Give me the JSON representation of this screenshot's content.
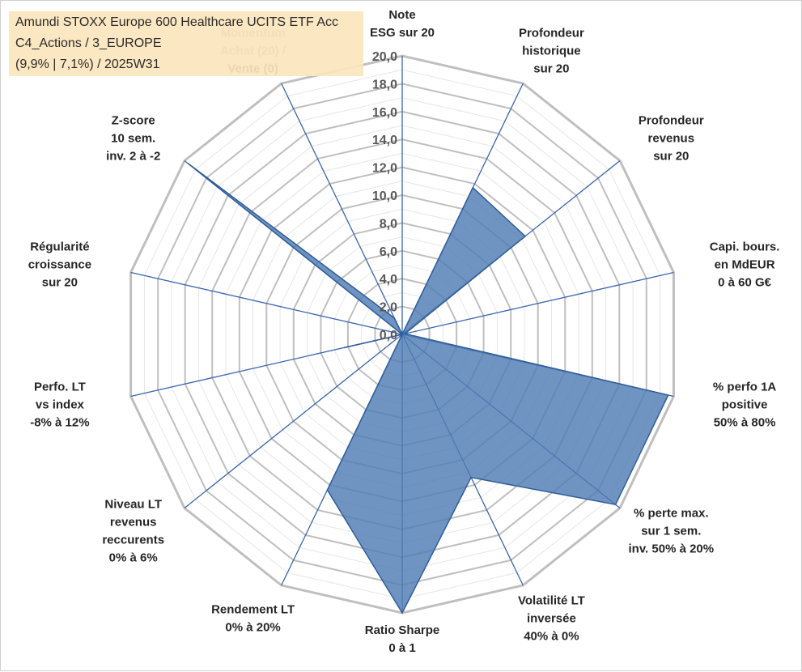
{
  "title": {
    "line1": "Amundi STOXX Europe 600 Healthcare UCITS ETF Acc",
    "line2": "C4_Actions / 3_EUROPE",
    "line3": "(9,9% | 7,1%) / 2025W31"
  },
  "colors": {
    "series_fill": "#4f7cb3",
    "series_stroke": "#2e5d99",
    "spokes": "#3a66b0",
    "major_grid": "#bfbfbf",
    "minor_grid": "#e6e6e6",
    "title_bg": "#fbe5bd"
  },
  "chart_data": {
    "type": "radar",
    "categories": [
      [
        "Note",
        "ESG sur 20"
      ],
      [
        "Profondeur",
        "historique",
        "sur 20"
      ],
      [
        "Profondeur",
        "revenus",
        "sur 20"
      ],
      [
        "Capi. bours.",
        "en MdEUR",
        "0 à 60 G€"
      ],
      [
        "% perfo 1A",
        "positive",
        "50% à 80%"
      ],
      [
        "% perte max.",
        "sur 1 sem.",
        "inv. 50% à 20%"
      ],
      [
        "Volatilité LT",
        "inversée",
        "40% à 0%"
      ],
      [
        "Ratio Sharpe",
        "0 à 1"
      ],
      [
        "Rendement LT",
        "0% à 20%"
      ],
      [
        "Niveau LT",
        "revenus",
        "reccurents",
        "0% à 6%"
      ],
      [
        "Perfo. LT",
        "vs index",
        "-8% à 12%"
      ],
      [
        "Régularité",
        "croissance",
        "sur 20"
      ],
      [
        "Z-score",
        "10 sem.",
        "inv. 2 à -2"
      ],
      [
        "Momentum",
        "Achat (20) /",
        "Vente (0)"
      ]
    ],
    "values": [
      0,
      11.7,
      11.3,
      0.2,
      19.6,
      19.6,
      11.4,
      20,
      12.4,
      0,
      4.3,
      0,
      19.7,
      1.3
    ],
    "ylim": [
      0,
      20
    ],
    "ticks": [
      "0,0",
      "2,0",
      "4,0",
      "6,0",
      "8,0",
      "10,0",
      "12,0",
      "14,0",
      "16,0",
      "18,0",
      "20,0"
    ],
    "grid": true,
    "legend": "none"
  }
}
